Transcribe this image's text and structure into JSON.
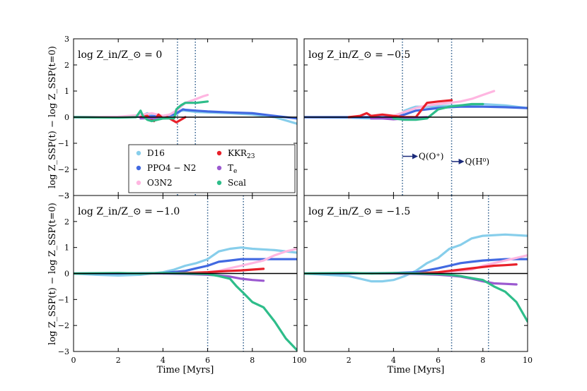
{
  "chart_data": {
    "type": "line",
    "figure": {
      "xlabel": "Time [Myrs]",
      "ylabel": "log Z_SSP(t) − log Z_SSP(t=0)",
      "xlim": [
        0,
        10
      ],
      "ylim": [
        -3,
        3
      ],
      "xticks": [
        "0",
        "2",
        "4",
        "6",
        "8",
        "10"
      ],
      "yticks": [
        "−3",
        "−2",
        "−1",
        "0",
        "1",
        "2",
        "3"
      ]
    },
    "colors": {
      "D16": "#87ceeb",
      "PPO4-N2": "#4169e1",
      "O3N2": "#ffb6e1",
      "KKR23": "#e8202a",
      "Te": "#9b59d0",
      "Scal": "#2ebd8a",
      "zero_line": "#000000",
      "vline": "#2e5d8c",
      "arrow": "#1a2a7a"
    },
    "legend": {
      "location": "lower-left",
      "entries": [
        {
          "key": "D16",
          "label": "D16"
        },
        {
          "key": "KKR23",
          "label": "KKR",
          "sub": "23"
        },
        {
          "key": "PPO4-N2",
          "label": "PPO4 − N2"
        },
        {
          "key": "Te",
          "label": "T",
          "sub": "e"
        },
        {
          "key": "O3N2",
          "label": "O3N2"
        },
        {
          "key": "Scal",
          "label": "Scal"
        }
      ]
    },
    "annotations": {
      "qo": "Q(O⁺)",
      "qh": "Q(H⁰)"
    },
    "panels": [
      {
        "title": "log Z_in/Z_⊙ = 0",
        "vlines": [
          4.65,
          5.45
        ],
        "series": [
          {
            "name": "D16",
            "x": [
              0,
              2,
              3,
              3.3,
              3.6,
              4,
              4.3,
              4.6,
              4.8,
              5,
              5.5,
              6,
              7,
              8,
              9,
              10
            ],
            "y": [
              0,
              0.02,
              0.05,
              0.15,
              0.05,
              0.02,
              0.05,
              0.1,
              0.25,
              0.25,
              0.2,
              0.18,
              0.15,
              0.1,
              0.0,
              -0.25
            ]
          },
          {
            "name": "PPO4-N2",
            "x": [
              0,
              2,
              3,
              4,
              4.5,
              4.7,
              4.9,
              5,
              5.5,
              6,
              7,
              8,
              9,
              10
            ],
            "y": [
              0,
              0,
              0.02,
              0.05,
              0.1,
              0.2,
              0.3,
              0.28,
              0.25,
              0.22,
              0.18,
              0.15,
              0.05,
              -0.05
            ]
          },
          {
            "name": "O3N2",
            "x": [
              0,
              2,
              3,
              3.5,
              4,
              4.3,
              4.6,
              4.8,
              5,
              5.5,
              5.8,
              6
            ],
            "y": [
              0,
              0.02,
              0.08,
              0.15,
              0.05,
              0.1,
              0.25,
              0.4,
              0.55,
              0.7,
              0.8,
              0.85
            ]
          },
          {
            "name": "KKR23",
            "x": [
              3,
              3.3,
              3.6,
              3.8,
              4,
              4.2,
              4.4,
              4.6,
              4.8,
              5
            ],
            "y": [
              0,
              0.05,
              -0.15,
              0.1,
              -0.05,
              0.0,
              -0.1,
              -0.2,
              -0.1,
              0.0
            ]
          },
          {
            "name": "Te",
            "x": [
              3,
              3.5,
              4,
              4.5
            ],
            "y": [
              -0.05,
              -0.03,
              -0.05,
              -0.02
            ]
          },
          {
            "name": "Scal",
            "x": [
              0,
              2,
              2.8,
              3,
              3.1,
              3.3,
              3.5,
              4,
              4.5,
              4.6,
              4.8,
              5,
              5.5,
              6
            ],
            "y": [
              0,
              -0.02,
              0.0,
              0.25,
              0.05,
              -0.1,
              -0.15,
              -0.05,
              -0.05,
              0.3,
              0.45,
              0.55,
              0.55,
              0.6
            ]
          }
        ]
      },
      {
        "title": "log Z_in/Z_⊙ = −0.5",
        "vlines": [
          4.4,
          6.6
        ],
        "arrows": true,
        "series": [
          {
            "name": "D16",
            "x": [
              0,
              2,
              3,
              4,
              4.3,
              4.5,
              4.8,
              5,
              5.5,
              6,
              7,
              8,
              9,
              10
            ],
            "y": [
              0,
              -0.02,
              -0.05,
              -0.05,
              0.05,
              0.25,
              0.35,
              0.4,
              0.4,
              0.42,
              0.45,
              0.5,
              0.45,
              0.35
            ]
          },
          {
            "name": "PPO4-N2",
            "x": [
              0,
              2,
              4,
              4.5,
              5,
              5.5,
              6,
              6.5,
              7,
              8,
              9,
              10
            ],
            "y": [
              0,
              0,
              0.0,
              0.1,
              0.25,
              0.3,
              0.35,
              0.38,
              0.4,
              0.4,
              0.38,
              0.35
            ]
          },
          {
            "name": "O3N2",
            "x": [
              4,
              4.5,
              5,
              5.5,
              6,
              6.5,
              7,
              7.5,
              8,
              8.5
            ],
            "y": [
              0.05,
              0.2,
              0.35,
              0.45,
              0.5,
              0.55,
              0.6,
              0.7,
              0.85,
              1.0
            ]
          },
          {
            "name": "KKR23",
            "x": [
              2,
              2.5,
              2.8,
              3,
              3.5,
              4,
              4.5,
              5,
              5.5,
              6,
              6.6
            ],
            "y": [
              0.0,
              0.05,
              0.15,
              0.05,
              0.1,
              0.05,
              0.0,
              0.0,
              0.55,
              0.6,
              0.65
            ]
          },
          {
            "name": "Te",
            "x": [
              3,
              3.5,
              4,
              4.5,
              5,
              5.5
            ],
            "y": [
              -0.05,
              -0.05,
              -0.08,
              -0.05,
              -0.02,
              0.0
            ]
          },
          {
            "name": "Scal",
            "x": [
              4,
              4.5,
              5,
              5.5,
              6,
              6.5,
              7,
              7.5,
              8
            ],
            "y": [
              -0.05,
              -0.1,
              -0.1,
              -0.05,
              0.3,
              0.4,
              0.45,
              0.5,
              0.5
            ]
          }
        ]
      },
      {
        "title": "log Z_in/Z_⊙ = −1.0",
        "vlines": [
          6.0,
          7.6
        ],
        "series": [
          {
            "name": "D16",
            "x": [
              0,
              1,
              2,
              3,
              4,
              4.5,
              5,
              5.5,
              6,
              6.5,
              7,
              7.5,
              8,
              9,
              10
            ],
            "y": [
              0,
              -0.05,
              -0.08,
              -0.05,
              0.05,
              0.15,
              0.3,
              0.4,
              0.55,
              0.85,
              0.95,
              1.0,
              0.95,
              0.9,
              0.8
            ]
          },
          {
            "name": "PPO4-N2",
            "x": [
              0,
              2,
              4,
              5,
              5.5,
              6,
              6.5,
              7,
              7.5,
              8,
              9,
              10
            ],
            "y": [
              0,
              0,
              0.02,
              0.1,
              0.2,
              0.3,
              0.45,
              0.5,
              0.55,
              0.55,
              0.55,
              0.55
            ]
          },
          {
            "name": "O3N2",
            "x": [
              5,
              6,
              6.5,
              7,
              7.5,
              8,
              8.5,
              9,
              9.5,
              10
            ],
            "y": [
              0,
              0.05,
              0.1,
              0.2,
              0.3,
              0.4,
              0.5,
              0.7,
              0.85,
              0.95
            ]
          },
          {
            "name": "KKR23",
            "x": [
              4,
              5,
              6,
              6.5,
              7,
              7.5,
              8,
              8.5
            ],
            "y": [
              0,
              0.02,
              0.05,
              0.08,
              0.1,
              0.12,
              0.15,
              0.18
            ]
          },
          {
            "name": "Te",
            "x": [
              3,
              4,
              5,
              6,
              6.5,
              7,
              7.5,
              8,
              8.5
            ],
            "y": [
              0,
              0,
              -0.02,
              -0.05,
              -0.08,
              -0.12,
              -0.2,
              -0.25,
              -0.28
            ]
          },
          {
            "name": "Scal",
            "x": [
              0,
              2,
              3,
              4,
              5,
              6,
              6.5,
              7,
              7.3,
              7.6,
              8,
              8.5,
              9,
              9.5,
              10
            ],
            "y": [
              0,
              0.02,
              0.0,
              0.02,
              0.0,
              -0.02,
              -0.1,
              -0.2,
              -0.5,
              -0.75,
              -1.1,
              -1.3,
              -1.85,
              -2.5,
              -2.95
            ]
          }
        ]
      },
      {
        "title": "log Z_in/Z_⊙ = −1.5",
        "vlines": [
          6.6,
          8.25
        ],
        "series": [
          {
            "name": "D16",
            "x": [
              0,
              1,
              2,
              3,
              3.5,
              4,
              4.5,
              5,
              5.5,
              6,
              6.5,
              7,
              7.5,
              8,
              9,
              10
            ],
            "y": [
              0,
              -0.05,
              -0.1,
              -0.3,
              -0.3,
              -0.25,
              -0.1,
              0.1,
              0.4,
              0.6,
              0.95,
              1.1,
              1.35,
              1.45,
              1.5,
              1.45
            ]
          },
          {
            "name": "PPO4-N2",
            "x": [
              0,
              2,
              4,
              5,
              5.5,
              6,
              6.5,
              7,
              7.5,
              8,
              9,
              10
            ],
            "y": [
              0,
              0,
              0.02,
              0.05,
              0.12,
              0.2,
              0.3,
              0.4,
              0.45,
              0.5,
              0.55,
              0.55
            ]
          },
          {
            "name": "O3N2",
            "x": [
              6,
              7,
              7.5,
              8,
              8.5,
              9,
              9.5,
              10
            ],
            "y": [
              0.05,
              0.1,
              0.15,
              0.3,
              0.4,
              0.5,
              0.6,
              0.7
            ]
          },
          {
            "name": "KKR23",
            "x": [
              5,
              6,
              6.5,
              7,
              7.5,
              8,
              8.5,
              9,
              9.5
            ],
            "y": [
              0.0,
              0.05,
              0.1,
              0.15,
              0.2,
              0.25,
              0.3,
              0.32,
              0.35
            ]
          },
          {
            "name": "Te",
            "x": [
              3,
              4,
              5,
              6,
              6.5,
              7,
              7.5,
              8,
              8.5,
              9,
              9.5
            ],
            "y": [
              0,
              0,
              -0.02,
              -0.05,
              -0.08,
              -0.12,
              -0.2,
              -0.3,
              -0.38,
              -0.4,
              -0.42
            ]
          },
          {
            "name": "Scal",
            "x": [
              0,
              2,
              3,
              4,
              5,
              6,
              6.5,
              7,
              7.5,
              8,
              8.5,
              9,
              9.5,
              10
            ],
            "y": [
              0,
              0.02,
              0.0,
              0.02,
              0.0,
              -0.02,
              -0.05,
              -0.1,
              -0.18,
              -0.25,
              -0.5,
              -0.7,
              -1.1,
              -1.85
            ]
          }
        ]
      }
    ]
  }
}
